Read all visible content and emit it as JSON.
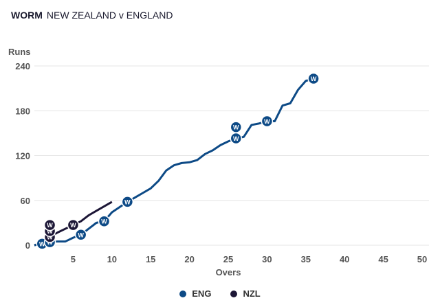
{
  "header": {
    "label": "WORM",
    "title": "NEW ZEALAND v ENGLAND"
  },
  "chart_data": {
    "type": "line",
    "title": "WORM NEW ZEALAND v ENGLAND",
    "xlabel": "Overs",
    "ylabel": "Runs",
    "xlim": [
      0,
      50
    ],
    "ylim": [
      0,
      240
    ],
    "xticks": [
      5,
      10,
      15,
      20,
      25,
      30,
      35,
      40,
      45,
      50
    ],
    "yticks": [
      0,
      60,
      120,
      180,
      240
    ],
    "grid": true,
    "legend": "bottom-center",
    "wicket_marker": "W",
    "series": [
      {
        "name": "ENG",
        "color": "#0d4a86",
        "x": [
          0,
          1,
          2,
          3,
          4,
          5,
          6,
          7,
          8,
          9,
          10,
          11,
          12,
          13,
          14,
          15,
          16,
          17,
          18,
          19,
          20,
          21,
          22,
          23,
          24,
          25,
          26,
          27,
          28,
          29,
          30,
          31,
          32,
          33,
          34,
          35,
          36
        ],
        "y": [
          0,
          2,
          4,
          5,
          5,
          10,
          14,
          22,
          30,
          32,
          44,
          51,
          58,
          64,
          70,
          76,
          86,
          100,
          107,
          110,
          111,
          114,
          122,
          127,
          134,
          139,
          143,
          145,
          161,
          163,
          166,
          166,
          187,
          190,
          208,
          220,
          223
        ],
        "wickets": [
          {
            "over": 1,
            "runs": 2
          },
          {
            "over": 2,
            "runs": 4
          },
          {
            "over": 6,
            "runs": 14
          },
          {
            "over": 9,
            "runs": 32
          },
          {
            "over": 12,
            "runs": 58
          },
          {
            "over": 26,
            "runs": 143
          },
          {
            "over": 26,
            "runs": 158
          },
          {
            "over": 30,
            "runs": 166
          },
          {
            "over": 36,
            "runs": 223
          }
        ]
      },
      {
        "name": "NZL",
        "color": "#1c1636",
        "x": [
          0,
          1,
          2,
          3,
          4,
          5,
          6,
          7,
          8,
          9,
          10
        ],
        "y": [
          0,
          3,
          11,
          17,
          22,
          27,
          32,
          40,
          46,
          52,
          58
        ],
        "wickets": [
          {
            "over": 2,
            "runs": 11
          },
          {
            "over": 2,
            "runs": 19
          },
          {
            "over": 2,
            "runs": 27
          },
          {
            "over": 5,
            "runs": 27
          }
        ]
      }
    ]
  }
}
